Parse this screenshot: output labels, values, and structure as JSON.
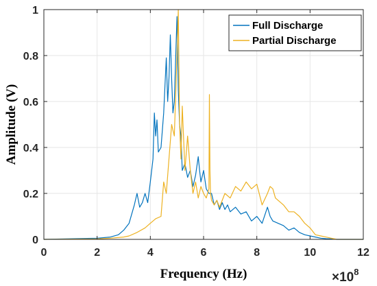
{
  "chart_data": {
    "type": "line",
    "title": "",
    "xlabel": "Frequency (Hz)",
    "ylabel": "Amplitude (V)",
    "xlim": [
      0,
      12
    ],
    "ylim": [
      0,
      1
    ],
    "x_multiplier_label": "×10",
    "x_multiplier_exp": "8",
    "x_ticks": [
      "0",
      "2",
      "4",
      "6",
      "8",
      "10",
      "12"
    ],
    "y_ticks": [
      "0",
      "0.2",
      "0.4",
      "0.6",
      "0.8",
      "1"
    ],
    "grid": true,
    "legend_position": "top-right",
    "series": [
      {
        "name": "Full Discharge",
        "color": "#0072BD",
        "x": [
          0,
          2.0,
          2.5,
          2.8,
          3.0,
          3.2,
          3.4,
          3.5,
          3.6,
          3.7,
          3.8,
          3.9,
          4.0,
          4.1,
          4.15,
          4.2,
          4.25,
          4.3,
          4.4,
          4.5,
          4.6,
          4.65,
          4.7,
          4.75,
          4.8,
          4.85,
          4.9,
          4.95,
          5.0,
          5.05,
          5.1,
          5.15,
          5.2,
          5.3,
          5.4,
          5.5,
          5.6,
          5.7,
          5.8,
          5.85,
          5.9,
          6.0,
          6.1,
          6.2,
          6.3,
          6.4,
          6.5,
          6.6,
          6.7,
          6.8,
          6.9,
          7.0,
          7.2,
          7.4,
          7.6,
          7.8,
          8.0,
          8.2,
          8.4,
          8.5,
          8.6,
          8.8,
          9.0,
          9.2,
          9.4,
          9.6,
          9.8,
          10.0,
          10.2,
          10.4,
          10.6,
          10.8,
          11.0,
          12.0
        ],
        "y": [
          0,
          0.005,
          0.01,
          0.02,
          0.04,
          0.07,
          0.15,
          0.2,
          0.14,
          0.16,
          0.2,
          0.16,
          0.25,
          0.35,
          0.55,
          0.45,
          0.52,
          0.38,
          0.4,
          0.55,
          0.79,
          0.6,
          0.7,
          0.89,
          0.7,
          0.55,
          0.6,
          0.78,
          0.97,
          0.65,
          0.5,
          0.45,
          0.3,
          0.33,
          0.27,
          0.3,
          0.23,
          0.28,
          0.36,
          0.3,
          0.25,
          0.3,
          0.22,
          0.2,
          0.2,
          0.15,
          0.17,
          0.13,
          0.16,
          0.13,
          0.15,
          0.12,
          0.14,
          0.11,
          0.12,
          0.08,
          0.1,
          0.07,
          0.14,
          0.1,
          0.08,
          0.07,
          0.06,
          0.04,
          0.05,
          0.03,
          0.02,
          0.015,
          0.01,
          0.005,
          0.003,
          0.002,
          0.0,
          0.0
        ]
      },
      {
        "name": "Partial Discharge",
        "color": "#EDB120",
        "x": [
          0,
          2.0,
          2.5,
          3.0,
          3.2,
          3.5,
          3.8,
          4.0,
          4.2,
          4.4,
          4.5,
          4.6,
          4.7,
          4.8,
          4.9,
          5.0,
          5.05,
          5.1,
          5.15,
          5.2,
          5.3,
          5.4,
          5.5,
          5.6,
          5.7,
          5.8,
          5.9,
          6.0,
          6.1,
          6.2,
          6.22,
          6.24,
          6.26,
          6.3,
          6.4,
          6.5,
          6.6,
          6.8,
          7.0,
          7.2,
          7.4,
          7.6,
          7.8,
          8.0,
          8.2,
          8.4,
          8.5,
          8.6,
          8.7,
          8.8,
          9.0,
          9.2,
          9.4,
          9.6,
          9.8,
          10.0,
          10.2,
          10.4,
          10.6,
          10.8,
          11.0,
          12.0
        ],
        "y": [
          0,
          0.002,
          0.005,
          0.01,
          0.015,
          0.03,
          0.05,
          0.07,
          0.09,
          0.1,
          0.25,
          0.2,
          0.35,
          0.5,
          0.45,
          0.8,
          1.0,
          0.5,
          0.35,
          0.58,
          0.3,
          0.45,
          0.3,
          0.2,
          0.25,
          0.18,
          0.23,
          0.2,
          0.18,
          0.22,
          0.63,
          0.3,
          0.2,
          0.17,
          0.15,
          0.17,
          0.14,
          0.2,
          0.18,
          0.23,
          0.21,
          0.25,
          0.22,
          0.24,
          0.15,
          0.2,
          0.23,
          0.22,
          0.18,
          0.17,
          0.15,
          0.12,
          0.12,
          0.1,
          0.07,
          0.05,
          0.02,
          0.015,
          0.01,
          0.005,
          0.0,
          0.0
        ]
      }
    ]
  }
}
